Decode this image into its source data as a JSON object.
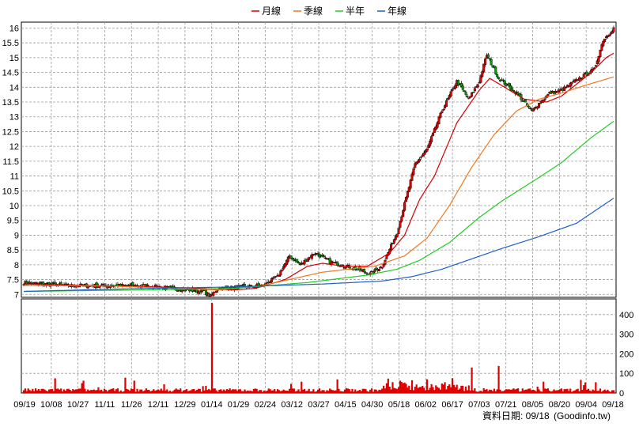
{
  "chart_data": {
    "type": "candlestick",
    "legend": [
      {
        "name": "月線",
        "color": "#d40000"
      },
      {
        "name": "季線",
        "color": "#f07820"
      },
      {
        "name": "半年",
        "color": "#22cc22"
      },
      {
        "name": "年線",
        "color": "#1e5fc8"
      }
    ],
    "price_axis": {
      "ylim": [
        6.9,
        16.2
      ],
      "ticks": [
        "7",
        "7.5",
        "8",
        "8.5",
        "9",
        "9.5",
        "10",
        "10.5",
        "11",
        "11.5",
        "12",
        "12.5",
        "13",
        "13.5",
        "14",
        "14.5",
        "15",
        "15.5",
        "16"
      ]
    },
    "volume_axis": {
      "ylim": [
        0,
        480
      ],
      "ticks": [
        "0",
        "100",
        "200",
        "300",
        "400"
      ]
    },
    "x_labels": [
      "09/19",
      "10/08",
      "10/27",
      "11/11",
      "11/26",
      "12/11",
      "12/29",
      "01/14",
      "01/29",
      "02/24",
      "03/12",
      "03/27",
      "04/15",
      "04/30",
      "05/18",
      "06/02",
      "06/17",
      "07/03",
      "07/21",
      "08/05",
      "08/20",
      "09/04",
      "09/18"
    ],
    "series": [
      {
        "name": "月線",
        "anchors": [
          [
            0,
            7.35
          ],
          [
            40,
            7.3
          ],
          [
            90,
            7.25
          ],
          [
            120,
            7.2
          ],
          [
            140,
            7.15
          ],
          [
            155,
            7.2
          ],
          [
            175,
            7.5
          ],
          [
            190,
            7.95
          ],
          [
            200,
            8.05
          ],
          [
            215,
            7.95
          ],
          [
            230,
            7.95
          ],
          [
            245,
            8.4
          ],
          [
            255,
            9.0
          ],
          [
            265,
            10.2
          ],
          [
            275,
            11.0
          ],
          [
            290,
            12.8
          ],
          [
            305,
            13.9
          ],
          [
            312,
            14.3
          ],
          [
            322,
            14.0
          ],
          [
            335,
            13.6
          ],
          [
            350,
            13.5
          ],
          [
            360,
            13.7
          ],
          [
            370,
            14.1
          ],
          [
            380,
            14.5
          ],
          [
            390,
            15.0
          ],
          [
            395,
            15.15
          ]
        ]
      },
      {
        "name": "季線",
        "anchors": [
          [
            0,
            7.3
          ],
          [
            60,
            7.28
          ],
          [
            130,
            7.15
          ],
          [
            160,
            7.3
          ],
          [
            200,
            7.75
          ],
          [
            235,
            7.95
          ],
          [
            255,
            8.3
          ],
          [
            270,
            8.9
          ],
          [
            285,
            10.0
          ],
          [
            300,
            11.3
          ],
          [
            315,
            12.4
          ],
          [
            330,
            13.2
          ],
          [
            345,
            13.6
          ],
          [
            360,
            13.8
          ],
          [
            375,
            14.05
          ],
          [
            395,
            14.35
          ]
        ]
      },
      {
        "name": "半年",
        "anchors": [
          [
            0,
            7.1
          ],
          [
            80,
            7.15
          ],
          [
            140,
            7.2
          ],
          [
            190,
            7.4
          ],
          [
            230,
            7.65
          ],
          [
            250,
            7.85
          ],
          [
            265,
            8.15
          ],
          [
            285,
            8.75
          ],
          [
            305,
            9.6
          ],
          [
            320,
            10.15
          ],
          [
            345,
            10.95
          ],
          [
            360,
            11.45
          ],
          [
            380,
            12.3
          ],
          [
            395,
            12.85
          ]
        ]
      },
      {
        "name": "年線",
        "anchors": [
          [
            0,
            7.1
          ],
          [
            80,
            7.2
          ],
          [
            140,
            7.25
          ],
          [
            200,
            7.35
          ],
          [
            240,
            7.45
          ],
          [
            260,
            7.6
          ],
          [
            280,
            7.85
          ],
          [
            300,
            8.2
          ],
          [
            320,
            8.55
          ],
          [
            345,
            8.95
          ],
          [
            370,
            9.4
          ],
          [
            395,
            10.25
          ]
        ]
      }
    ]
  },
  "source_label": "資料日期: 09/18",
  "watermark": "(Goodinfo.tw)"
}
